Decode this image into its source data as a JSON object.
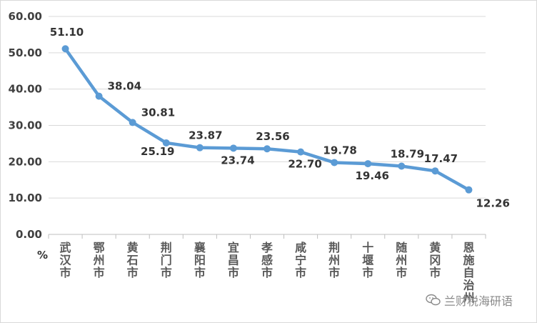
{
  "chart_data": {
    "type": "line",
    "y_unit_label": "%",
    "ylim": [
      0,
      60
    ],
    "yticks": [
      "0.00",
      "10.00",
      "20.00",
      "30.00",
      "40.00",
      "50.00",
      "60.00"
    ],
    "grid": true,
    "categories": [
      "武汉市",
      "鄂州市",
      "黄石市",
      "荆门市",
      "襄阳市",
      "宜昌市",
      "孝感市",
      "咸宁市",
      "荆州市",
      "十堰市",
      "随州市",
      "黄冈市",
      "恩施自治州"
    ],
    "values": [
      51.1,
      38.04,
      30.81,
      25.19,
      23.87,
      23.74,
      23.56,
      22.7,
      19.78,
      19.46,
      18.79,
      17.47,
      12.26
    ],
    "value_labels": [
      "51.10",
      "38.04",
      "30.81",
      "25.19",
      "23.87",
      "23.74",
      "23.56",
      "22.70",
      "19.78",
      "19.46",
      "18.79",
      "17.47",
      "12.26"
    ],
    "line_color": "#5b9bd5"
  },
  "watermark": {
    "text": "兰财税海研语",
    "icon": "wechat-icon"
  }
}
